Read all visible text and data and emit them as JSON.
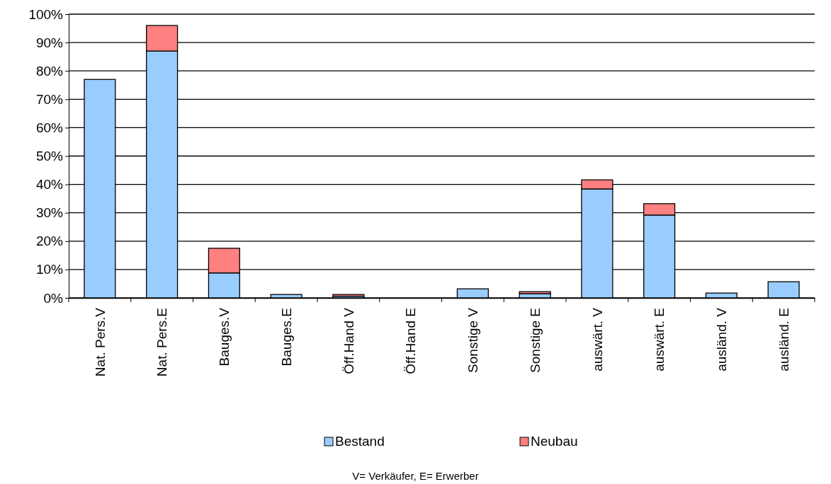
{
  "chart_data": {
    "type": "bar",
    "stacked": true,
    "categories": [
      "Nat. Pers.V",
      "Nat. Pers.E",
      "Bauges.V",
      "Bauges.E",
      "Öff.Hand V",
      "Öff.Hand E",
      "Sonstige V",
      "Sonstige E",
      "auswärt. V",
      "auswärt. E",
      "ausländ. V",
      "ausländ. E"
    ],
    "series": [
      {
        "name": "Bestand",
        "color": "#99ccff",
        "values": [
          77,
          87,
          8.8,
          1.2,
          0.6,
          0,
          3.2,
          1.5,
          38.4,
          29.2,
          1.7,
          5.7
        ]
      },
      {
        "name": "Neubau",
        "color": "#ff8080",
        "values": [
          0,
          9,
          8.7,
          0,
          0.6,
          0,
          0,
          0.7,
          3.2,
          4,
          0,
          0
        ]
      }
    ],
    "ylim": [
      0,
      100
    ],
    "yticks": [
      {
        "value": 0,
        "label": "0%"
      },
      {
        "value": 10,
        "label": "10%"
      },
      {
        "value": 20,
        "label": "20%"
      },
      {
        "value": 30,
        "label": "30%"
      },
      {
        "value": 40,
        "label": "40%"
      },
      {
        "value": 50,
        "label": "50%"
      },
      {
        "value": 60,
        "label": "60%"
      },
      {
        "value": 70,
        "label": "70%"
      },
      {
        "value": 80,
        "label": "80%"
      },
      {
        "value": 90,
        "label": "90%"
      },
      {
        "value": 100,
        "label": "100%"
      }
    ],
    "grid": "y",
    "legend": "bottom",
    "annotations": [
      "V= Verkäufer, E= Erwerber"
    ]
  }
}
